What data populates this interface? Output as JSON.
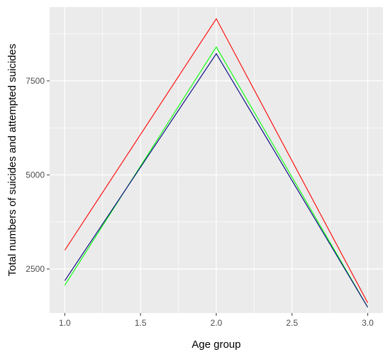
{
  "chart_data": {
    "type": "line",
    "title": "",
    "xlabel": "Age group",
    "ylabel": "Total numbers of suicides and attempted suicides",
    "xlim": [
      0.9,
      3.1
    ],
    "ylim": [
      1330,
      9460
    ],
    "x_ticks": [
      1.0,
      1.5,
      2.0,
      2.5,
      3.0
    ],
    "x_tick_labels": [
      "1.0",
      "1.5",
      "2.0",
      "2.5",
      "3.0"
    ],
    "y_ticks": [
      2500,
      5000,
      7500
    ],
    "y_tick_labels": [
      "2500",
      "5000",
      "7500"
    ],
    "grid": true,
    "legend": "none",
    "background": "#ebebeb",
    "grid_color": "#ffffff",
    "x": [
      1,
      2,
      3
    ],
    "series": [
      {
        "color": "#ff0000",
        "values": [
          3000,
          9150,
          1600
        ]
      },
      {
        "color": "#00ff00",
        "values": [
          2070,
          8400,
          1480
        ]
      },
      {
        "color": "#000080",
        "values": [
          2190,
          8220,
          1480
        ]
      }
    ]
  }
}
